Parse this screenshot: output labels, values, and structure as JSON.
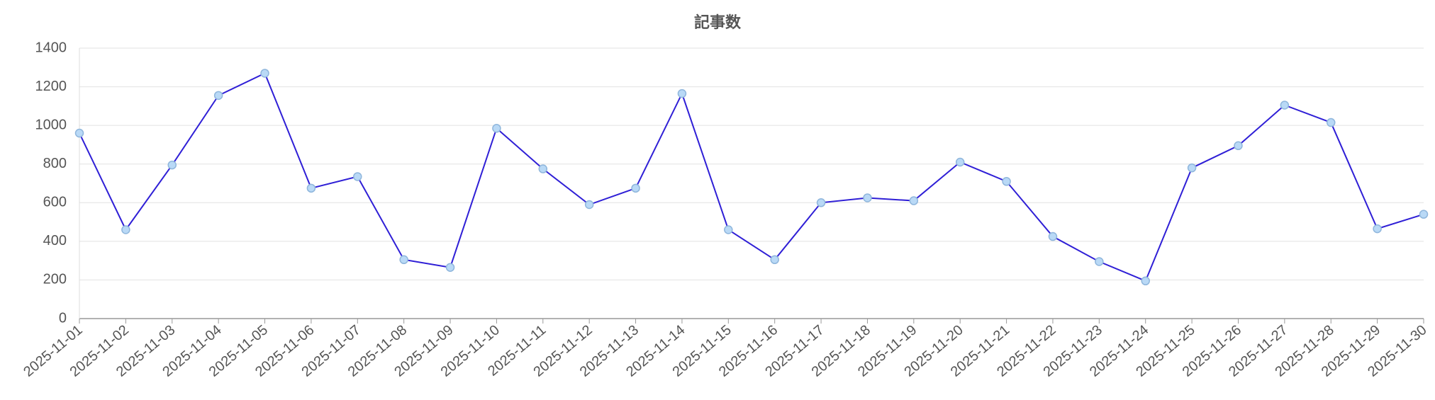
{
  "chart_data": {
    "type": "line",
    "title": "記事数",
    "x": [
      "2025-11-01",
      "2025-11-02",
      "2025-11-03",
      "2025-11-04",
      "2025-11-05",
      "2025-11-06",
      "2025-11-07",
      "2025-11-08",
      "2025-11-09",
      "2025-11-10",
      "2025-11-11",
      "2025-11-12",
      "2025-11-13",
      "2025-11-14",
      "2025-11-15",
      "2025-11-16",
      "2025-11-17",
      "2025-11-18",
      "2025-11-19",
      "2025-11-20",
      "2025-11-21",
      "2025-11-22",
      "2025-11-23",
      "2025-11-24",
      "2025-11-25",
      "2025-11-26",
      "2025-11-27",
      "2025-11-28",
      "2025-11-29",
      "2025-11-30"
    ],
    "values": [
      960,
      460,
      795,
      1155,
      1270,
      675,
      735,
      305,
      265,
      985,
      775,
      590,
      675,
      1165,
      460,
      305,
      600,
      625,
      610,
      810,
      710,
      425,
      295,
      195,
      780,
      895,
      1105,
      1015,
      465,
      540
    ],
    "color": "#2f1fd6",
    "marker_color": "#b9d9f6",
    "ylim": [
      0,
      1400
    ],
    "yticks": [
      0,
      200,
      400,
      600,
      800,
      1000,
      1200,
      1400
    ],
    "grid": true
  }
}
